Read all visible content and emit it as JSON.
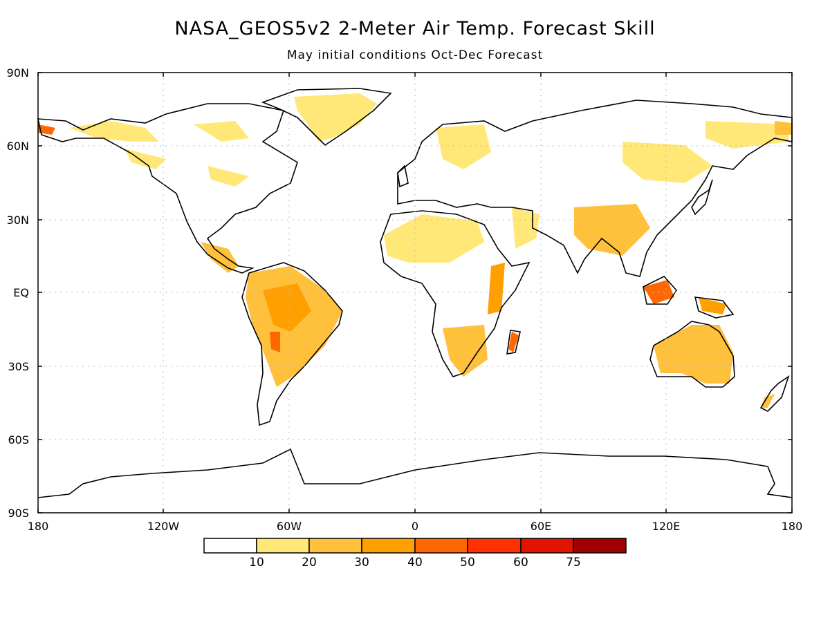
{
  "title": "NASA_GEOS5v2 2-Meter Air Temp. Forecast Skill",
  "subtitle": "May initial conditions   Oct-Dec Forecast",
  "lat_ticks": [
    "90N",
    "60N",
    "30N",
    "EQ",
    "30S",
    "60S",
    "90S"
  ],
  "lon_ticks": [
    "180",
    "120W",
    "60W",
    "0",
    "60E",
    "120E",
    "180"
  ],
  "colorbar": {
    "labels": [
      "10",
      "20",
      "30",
      "40",
      "50",
      "60",
      "75"
    ],
    "colors": [
      "#ffffff",
      "#ffe878",
      "#ffc03c",
      "#ffa000",
      "#ff6800",
      "#ff3200",
      "#e01400",
      "#a00000"
    ]
  },
  "colors": {
    "land_outline": "#000000",
    "grid": "#bbbbbb"
  }
}
